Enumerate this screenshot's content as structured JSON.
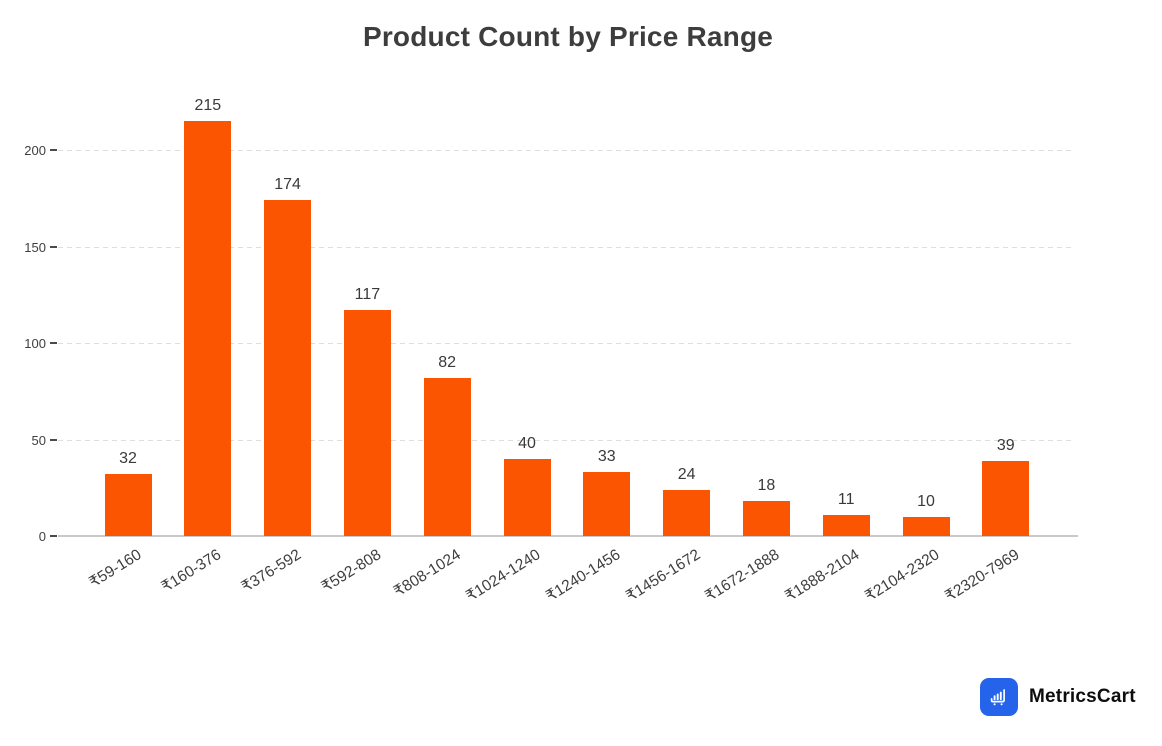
{
  "chart_data": {
    "type": "bar",
    "title": "Product Count by Price Range",
    "categories": [
      "₹59-160",
      "₹160-376",
      "₹376-592",
      "₹592-808",
      "₹808-1024",
      "₹1024-1240",
      "₹1240-1456",
      "₹1456-1672",
      "₹1672-1888",
      "₹1888-2104",
      "₹2104-2320",
      "₹2320-7969"
    ],
    "values": [
      32,
      215,
      174,
      117,
      82,
      40,
      33,
      24,
      18,
      11,
      10,
      39
    ],
    "xlabel": "",
    "ylabel": "",
    "ylim": [
      0,
      225
    ],
    "yticks": [
      0,
      50,
      100,
      150,
      200
    ],
    "grid": "horizontal-dashed",
    "legend": "none",
    "bar_color": "#FB5502"
  },
  "colors": {
    "bar": "#FB5502",
    "title": "#3D3D3D",
    "value_label": "#3A3A3A",
    "axis_label": "#3F3F3F",
    "tick_mark": "#4A4A4A",
    "grid": "#DEDEDE",
    "baseline": "#C9C9C9"
  },
  "branding": {
    "name": "MetricsCart",
    "icon": "bar-chart-cart-icon",
    "icon_bg": "#2563EB",
    "icon_fg": "#FFFFFF",
    "text_color": "#0D0D0D"
  }
}
